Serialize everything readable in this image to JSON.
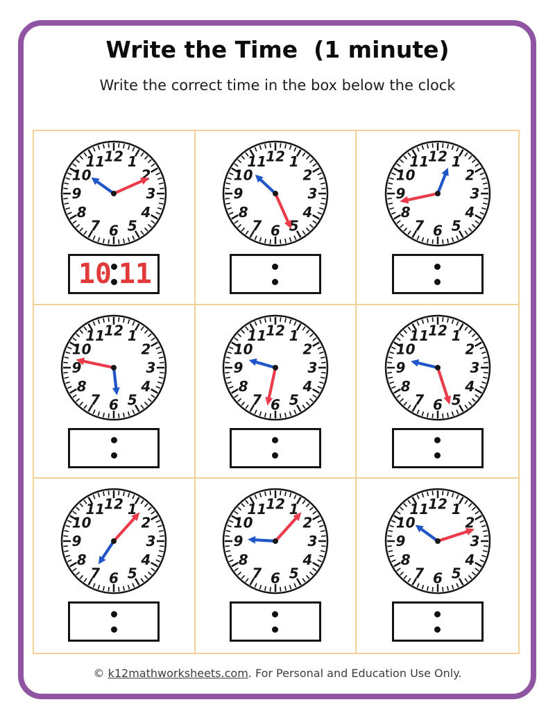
{
  "header": {
    "title": "Write the Time  (1 minute)",
    "subtitle": "Write the correct time in the box below the clock"
  },
  "clock_face": {
    "numbers": [
      1,
      2,
      3,
      4,
      5,
      6,
      7,
      8,
      9,
      10,
      11,
      12
    ]
  },
  "clocks": [
    {
      "position": "row1-col1",
      "hour": 10,
      "minute": 11,
      "answered": true,
      "answer_hour": "10",
      "answer_minute": "11"
    },
    {
      "position": "row1-col2",
      "hour": 10,
      "minute": 26,
      "answered": false,
      "answer_hour": "",
      "answer_minute": ""
    },
    {
      "position": "row1-col3",
      "hour": 12,
      "minute": 43,
      "answered": false,
      "answer_hour": "",
      "answer_minute": ""
    },
    {
      "position": "row2-col1",
      "hour": 5,
      "minute": 47,
      "answered": false,
      "answer_hour": "",
      "answer_minute": ""
    },
    {
      "position": "row2-col2",
      "hour": 9,
      "minute": 32,
      "answered": false,
      "answer_hour": "",
      "answer_minute": ""
    },
    {
      "position": "row2-col3",
      "hour": 9,
      "minute": 27,
      "answered": false,
      "answer_hour": "",
      "answer_minute": ""
    },
    {
      "position": "row3-col1",
      "hour": 7,
      "minute": 7,
      "answered": false,
      "answer_hour": "",
      "answer_minute": ""
    },
    {
      "position": "row3-col2",
      "hour": 9,
      "minute": 7,
      "answered": false,
      "answer_hour": "",
      "answer_minute": ""
    },
    {
      "position": "row3-col3",
      "hour": 10,
      "minute": 12,
      "answered": false,
      "answer_hour": "",
      "answer_minute": ""
    }
  ],
  "footer": {
    "copyright_prefix": "© ",
    "link_text": "k12mathworksheets.com",
    "suffix": ". For Personal and Education Use Only."
  },
  "colors": {
    "page_border_purple": "#8f55a3",
    "grid_border_tan": "#f3d096",
    "hour_hand_blue": "#2056c7",
    "minute_hand_red": "#e93b4a",
    "answer_text_red": "#e03a3a",
    "clock_ink": "#161616"
  }
}
